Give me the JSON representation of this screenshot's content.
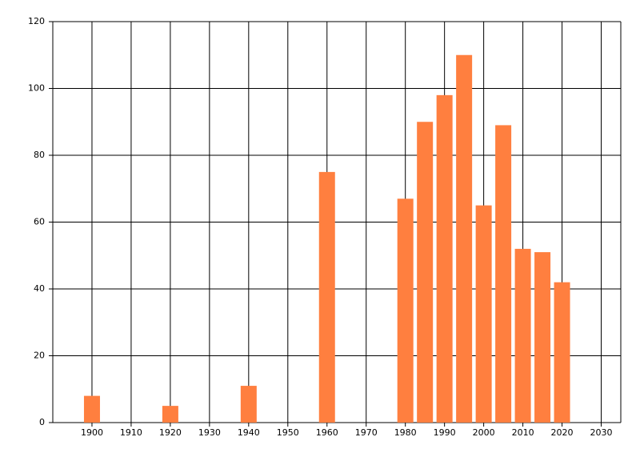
{
  "chart_data": {
    "type": "bar",
    "x": [
      1900,
      1920,
      1940,
      1960,
      1980,
      1985,
      1990,
      1995,
      2000,
      2005,
      2010,
      2015,
      2020
    ],
    "values": [
      8,
      5,
      11,
      75,
      67,
      90,
      98,
      110,
      65,
      89,
      52,
      51,
      42
    ],
    "color": "#ff7f3f",
    "xlim": [
      1890,
      2035
    ],
    "xticks": [
      1900,
      1910,
      1920,
      1930,
      1940,
      1950,
      1960,
      1970,
      1980,
      1990,
      2000,
      2010,
      2020,
      2030
    ],
    "ylim": [
      0,
      120
    ],
    "yticks": [
      0,
      20,
      40,
      60,
      80,
      100,
      120
    ],
    "grid": true
  }
}
